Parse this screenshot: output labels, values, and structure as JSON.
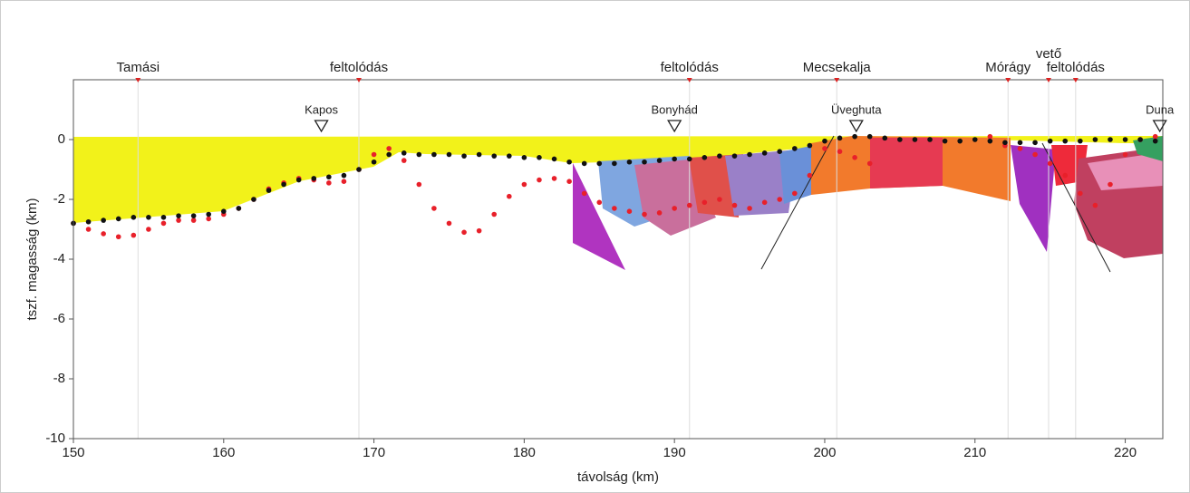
{
  "chart_data": {
    "type": "scatter",
    "xlabel": "távolság (km)",
    "ylabel": "tszf. magasság (km)",
    "xlim": [
      150,
      222.5
    ],
    "ylim": [
      -10,
      2
    ],
    "xticks": [
      150,
      160,
      170,
      180,
      190,
      200,
      210,
      220
    ],
    "yticks": [
      -10,
      -8,
      -6,
      -4,
      -2,
      0
    ],
    "annotations": [
      {
        "text": "Tamási",
        "x": 154.3
      },
      {
        "text": "feltolódás",
        "x": 169
      },
      {
        "text": "feltolódás",
        "x": 191
      },
      {
        "text": "Mecsekalja",
        "x": 200.8
      },
      {
        "text": "Mórágy",
        "x": 212.2
      },
      {
        "text": "vető",
        "x": 214.9
      },
      {
        "text": "feltolódás",
        "x": 216.7
      }
    ],
    "landmarks": [
      {
        "text": "Kapos",
        "x": 166.5
      },
      {
        "text": "Bonyhád",
        "x": 190
      },
      {
        "text": "Üveghuta",
        "x": 202.1
      },
      {
        "text": "Duna",
        "x": 222.3
      }
    ],
    "series": [
      {
        "color": "#e8202a",
        "x": [
          150,
          151,
          152,
          153,
          154,
          155,
          156,
          157,
          158,
          159,
          160,
          161,
          162,
          163,
          164,
          165,
          166,
          167,
          168,
          169,
          170,
          171,
          172,
          173,
          174,
          175,
          176,
          177,
          178,
          179,
          180,
          181,
          182,
          183,
          184,
          185,
          186,
          187,
          188,
          189,
          190,
          191,
          192,
          193,
          194,
          195,
          196,
          197,
          198,
          199,
          200,
          201,
          202,
          203,
          211,
          212,
          213,
          214,
          215,
          216,
          217,
          218,
          219,
          220,
          221,
          222
        ],
        "values": [
          -2.8,
          -3.0,
          -3.15,
          -3.25,
          -3.2,
          -3.0,
          -2.8,
          -2.7,
          -2.7,
          -2.65,
          -2.5,
          -2.3,
          -2.0,
          -1.65,
          -1.45,
          -1.3,
          -1.35,
          -1.45,
          -1.4,
          -1.0,
          -0.5,
          -0.3,
          -0.7,
          -1.5,
          -2.3,
          -2.8,
          -3.1,
          -3.05,
          -2.5,
          -1.9,
          -1.5,
          -1.35,
          -1.3,
          -1.4,
          -1.8,
          -2.1,
          -2.3,
          -2.4,
          -2.5,
          -2.45,
          -2.3,
          -2.2,
          -2.1,
          -2.0,
          -2.2,
          -2.3,
          -2.1,
          -2.0,
          -1.8,
          -1.2,
          -0.3,
          -0.4,
          -0.6,
          -0.8,
          0.1,
          -0.2,
          -0.3,
          -0.5,
          -0.8,
          -1.2,
          -1.8,
          -2.2,
          -1.5,
          -0.5,
          0.0,
          0.1
        ]
      },
      {
        "color": "#111111",
        "x": [
          150,
          151,
          152,
          153,
          154,
          155,
          156,
          157,
          158,
          159,
          160,
          161,
          162,
          163,
          164,
          165,
          166,
          167,
          168,
          169,
          170,
          171,
          172,
          173,
          174,
          175,
          176,
          177,
          178,
          179,
          180,
          181,
          182,
          183,
          184,
          185,
          186,
          187,
          188,
          189,
          190,
          191,
          192,
          193,
          194,
          195,
          196,
          197,
          198,
          199,
          200,
          201,
          202,
          203,
          204,
          205,
          206,
          207,
          208,
          209,
          210,
          211,
          212,
          213,
          214,
          215,
          216,
          217,
          218,
          219,
          220,
          221,
          222
        ],
        "values": [
          -2.8,
          -2.75,
          -2.7,
          -2.65,
          -2.6,
          -2.6,
          -2.6,
          -2.55,
          -2.55,
          -2.5,
          -2.4,
          -2.3,
          -2.0,
          -1.7,
          -1.5,
          -1.35,
          -1.3,
          -1.25,
          -1.2,
          -1.0,
          -0.75,
          -0.5,
          -0.45,
          -0.5,
          -0.5,
          -0.5,
          -0.55,
          -0.5,
          -0.55,
          -0.55,
          -0.6,
          -0.6,
          -0.65,
          -0.75,
          -0.8,
          -0.8,
          -0.8,
          -0.75,
          -0.75,
          -0.7,
          -0.65,
          -0.65,
          -0.6,
          -0.55,
          -0.55,
          -0.5,
          -0.45,
          -0.4,
          -0.3,
          -0.2,
          -0.05,
          0.05,
          0.1,
          0.1,
          0.05,
          0.0,
          0.0,
          0.0,
          -0.05,
          -0.05,
          0.0,
          -0.05,
          -0.1,
          -0.1,
          -0.1,
          -0.05,
          -0.05,
          -0.05,
          0.0,
          0.0,
          0.0,
          0.0,
          -0.05
        ]
      }
    ]
  }
}
